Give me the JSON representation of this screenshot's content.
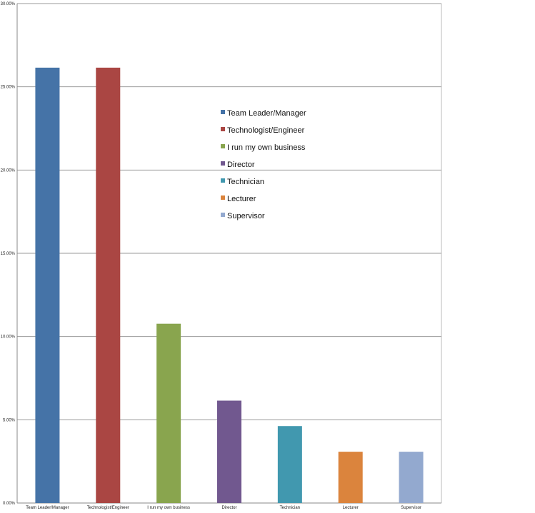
{
  "chart_data": {
    "type": "bar",
    "categories": [
      "Team Leader/Manager",
      "Technologist/Engineer",
      "I run my own business",
      "Director",
      "Technician",
      "Lecturer",
      "Supervisor"
    ],
    "values": [
      26.15,
      26.15,
      10.77,
      6.15,
      4.62,
      3.08,
      3.08
    ],
    "colors": [
      "#4573a7",
      "#aa4643",
      "#89a54e",
      "#71588f",
      "#4198af",
      "#db843d",
      "#93a9cf"
    ],
    "yticks": [
      "0.00%",
      "5.00%",
      "10.00%",
      "15.00%",
      "20.00%",
      "25.00%",
      "30.00%"
    ],
    "ylim": [
      0,
      30
    ],
    "grid": true,
    "legend": {
      "placement": "center-inside",
      "entries": [
        "Team Leader/Manager",
        "Technologist/Engineer",
        "I run my own business",
        "Director",
        "Technician",
        "Lecturer",
        "Supervisor"
      ]
    }
  }
}
